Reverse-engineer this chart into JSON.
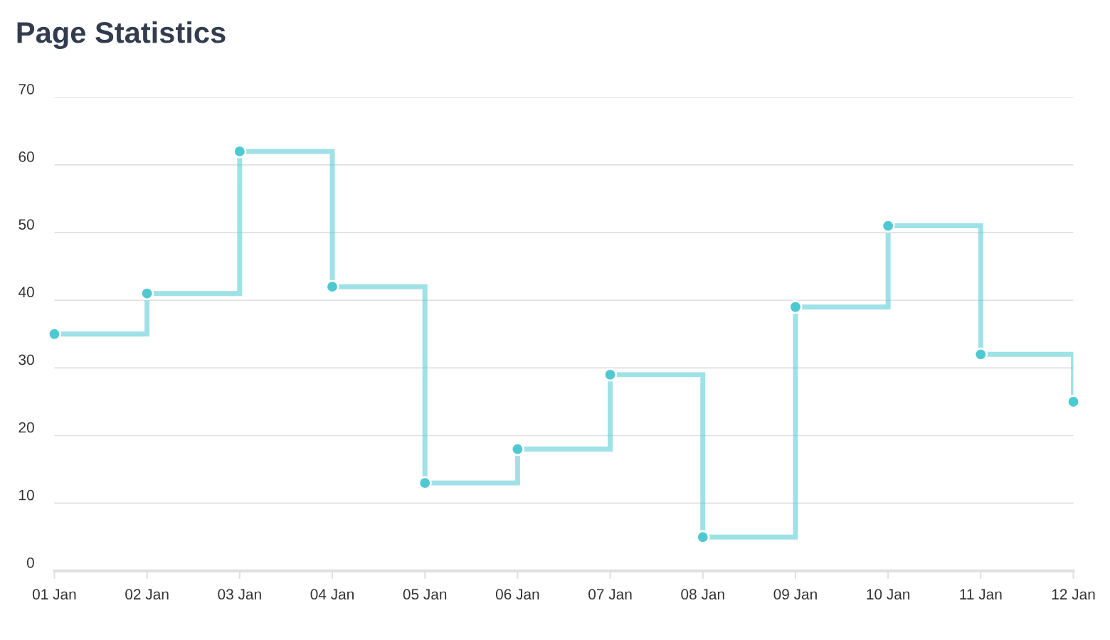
{
  "chart_data": {
    "type": "step",
    "title": "Page Statistics",
    "categories": [
      "01 Jan",
      "02 Jan",
      "03 Jan",
      "04 Jan",
      "05 Jan",
      "06 Jan",
      "07 Jan",
      "08 Jan",
      "09 Jan",
      "10 Jan",
      "11 Jan",
      "12 Jan"
    ],
    "series": [
      {
        "color": "#4fc9d1",
        "values": [
          35,
          41,
          62,
          42,
          13,
          18,
          29,
          5,
          39,
          51,
          32,
          25
        ]
      }
    ],
    "ylim": [
      0,
      70
    ],
    "yticks": [
      0,
      10,
      20,
      30,
      40,
      50,
      60,
      70
    ],
    "grid": "y",
    "marker": "circle",
    "line_style": "solid"
  }
}
